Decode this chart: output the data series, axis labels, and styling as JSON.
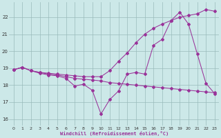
{
  "xlabel": "Windchill (Refroidissement éolien,°C)",
  "bg_color": "#cce8e8",
  "line_color": "#993399",
  "grid_color": "#99bbbb",
  "x_ticks": [
    0,
    1,
    2,
    3,
    4,
    5,
    6,
    7,
    8,
    9,
    10,
    11,
    12,
    13,
    14,
    15,
    16,
    17,
    18,
    19,
    20,
    21,
    22,
    23
  ],
  "y_ticks": [
    16,
    17,
    18,
    19,
    20,
    21,
    22
  ],
  "ylim": [
    15.6,
    22.9
  ],
  "xlim": [
    -0.5,
    23.5
  ],
  "line1_x": [
    0,
    1,
    2,
    3,
    4,
    5,
    6,
    7,
    8,
    9,
    10,
    11,
    12,
    13,
    14,
    15,
    16,
    17,
    18,
    19,
    20,
    21,
    22,
    23
  ],
  "line1_y": [
    18.9,
    19.05,
    18.85,
    18.75,
    18.65,
    18.6,
    18.5,
    18.4,
    18.35,
    18.3,
    18.25,
    18.15,
    18.1,
    18.05,
    18.0,
    17.95,
    17.9,
    17.85,
    17.8,
    17.75,
    17.7,
    17.65,
    17.6,
    17.55
  ],
  "line2_x": [
    0,
    1,
    2,
    3,
    4,
    5,
    6,
    7,
    8,
    9,
    10,
    11,
    12,
    13,
    14,
    15,
    16,
    17,
    18,
    19,
    20,
    21,
    22,
    23
  ],
  "line2_y": [
    18.9,
    19.05,
    18.85,
    18.7,
    18.6,
    18.55,
    18.4,
    17.95,
    18.05,
    17.7,
    16.3,
    17.15,
    17.65,
    18.65,
    18.75,
    18.65,
    20.35,
    20.7,
    21.8,
    22.3,
    21.6,
    19.85,
    18.1,
    17.5
  ],
  "line3_x": [
    0,
    1,
    2,
    3,
    4,
    5,
    6,
    7,
    8,
    9,
    10,
    11,
    12,
    13,
    14,
    15,
    16,
    17,
    18,
    19,
    20,
    21,
    22,
    23
  ],
  "line3_y": [
    18.9,
    19.05,
    18.85,
    18.75,
    18.7,
    18.65,
    18.6,
    18.55,
    18.5,
    18.5,
    18.5,
    18.85,
    19.4,
    19.9,
    20.5,
    21.0,
    21.35,
    21.6,
    21.8,
    22.0,
    22.1,
    22.2,
    22.45,
    22.35
  ]
}
